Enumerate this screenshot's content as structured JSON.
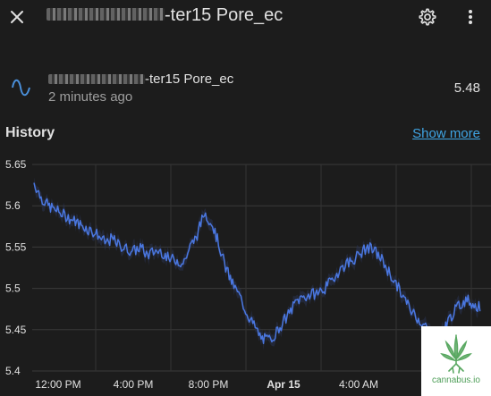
{
  "header": {
    "title_suffix": "-ter15 Pore_ec",
    "close_icon": "close-icon",
    "settings_icon": "gear-icon",
    "menu_icon": "kebab-menu-icon"
  },
  "entity": {
    "icon": "sine-wave-icon",
    "name_suffix": "-ter15 Pore_ec",
    "last_changed": "2 minutes ago",
    "value": "5.48"
  },
  "history": {
    "title": "History",
    "show_more": "Show more"
  },
  "chart_data": {
    "type": "line",
    "title": "",
    "xlabel": "",
    "ylabel": "",
    "ylim": [
      5.4,
      5.65
    ],
    "y_ticks": [
      "5.65",
      "5.6",
      "5.55",
      "5.5",
      "5.45",
      "5.4"
    ],
    "x_ticks": [
      "12:00 PM",
      "4:00 PM",
      "8:00 PM",
      "Apr 15",
      "4:00 AM",
      "8:"
    ],
    "x_ticks_bold": [
      false,
      false,
      false,
      true,
      false,
      false
    ],
    "grid": true,
    "line_color": "#4a77e0",
    "series": [
      {
        "values": [
          5.628,
          5.61,
          5.6,
          5.595,
          5.59,
          5.585,
          5.58,
          5.575,
          5.57,
          5.565,
          5.555,
          5.56,
          5.552,
          5.548,
          5.545,
          5.55,
          5.54,
          5.545,
          5.545,
          5.535,
          5.535,
          5.53,
          5.55,
          5.565,
          5.592,
          5.58,
          5.555,
          5.525,
          5.505,
          5.49,
          5.47,
          5.455,
          5.44,
          5.437,
          5.445,
          5.458,
          5.47,
          5.485,
          5.49,
          5.492,
          5.495,
          5.5,
          5.51,
          5.522,
          5.53,
          5.535,
          5.542,
          5.55,
          5.545,
          5.535,
          5.52,
          5.505,
          5.49,
          5.475,
          5.465,
          5.455,
          5.445,
          5.44,
          5.455,
          5.47,
          5.48,
          5.487,
          5.48,
          5.476
        ]
      }
    ]
  },
  "watermark": {
    "text": "cannabus.io"
  }
}
